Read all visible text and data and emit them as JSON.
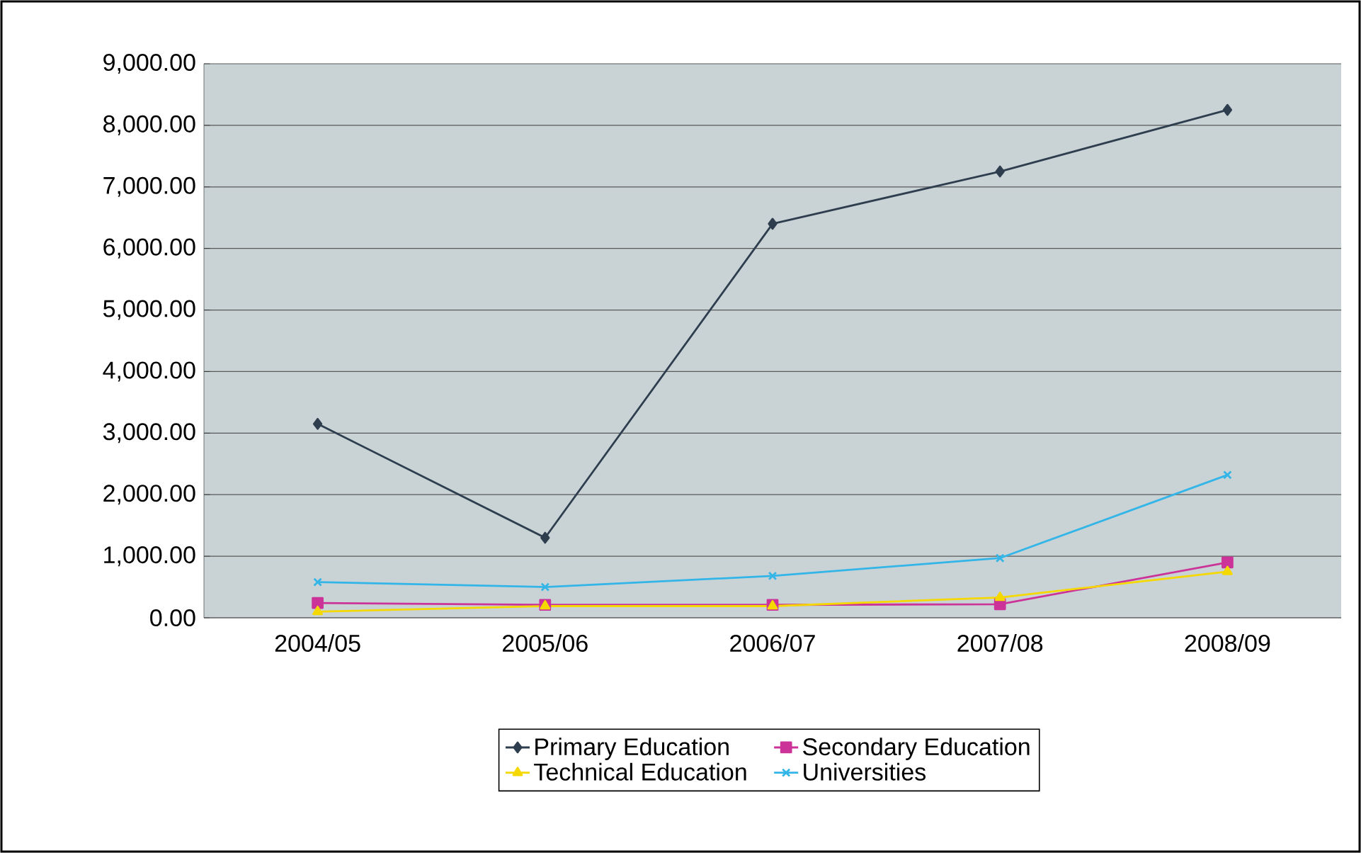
{
  "chart_data": {
    "type": "line",
    "categories": [
      "2004/05",
      "2005/06",
      "2006/07",
      "2007/08",
      "2008/09"
    ],
    "series": [
      {
        "name": "Primary Education",
        "color": "#2e3e4e",
        "marker": "diamond",
        "values": [
          3150,
          1300,
          6400,
          7250,
          8250
        ]
      },
      {
        "name": "Secondary Education",
        "color": "#cc3399",
        "marker": "square",
        "values": [
          240,
          210,
          210,
          220,
          900
        ]
      },
      {
        "name": "Technical Education",
        "color": "#f5d800",
        "marker": "triangle",
        "values": [
          100,
          190,
          190,
          330,
          750
        ]
      },
      {
        "name": "Universities",
        "color": "#33b5e8",
        "marker": "cross",
        "values": [
          580,
          500,
          680,
          970,
          2320
        ]
      }
    ],
    "ylim": [
      0,
      9000
    ],
    "yticks": [
      {
        "value": 0,
        "label": "0.00"
      },
      {
        "value": 1000,
        "label": "1,000.00"
      },
      {
        "value": 2000,
        "label": "2,000.00"
      },
      {
        "value": 3000,
        "label": "3,000.00"
      },
      {
        "value": 4000,
        "label": "4,000.00"
      },
      {
        "value": 5000,
        "label": "5,000.00"
      },
      {
        "value": 6000,
        "label": "6,000.00"
      },
      {
        "value": 7000,
        "label": "7,000.00"
      },
      {
        "value": 8000,
        "label": "8,000.00"
      },
      {
        "value": 9000,
        "label": "9,000.00"
      }
    ],
    "grid": "y",
    "legend": "bottom",
    "line_style": "solid"
  }
}
